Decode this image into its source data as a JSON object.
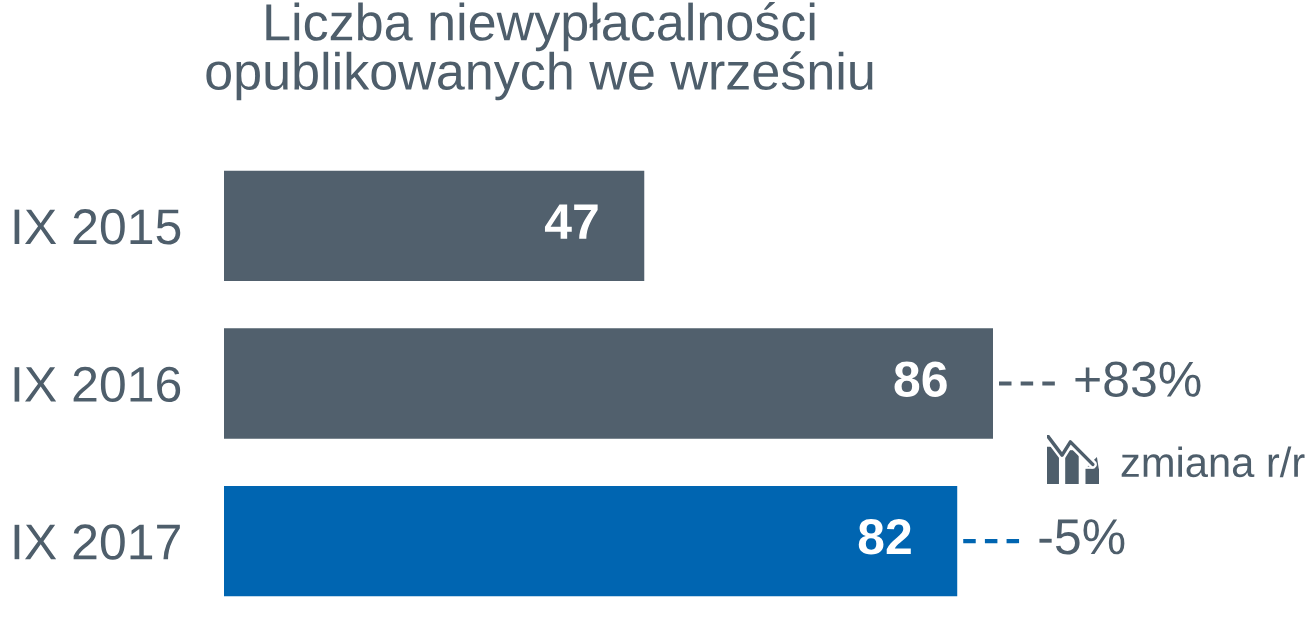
{
  "chart_data": {
    "type": "bar",
    "orientation": "horizontal",
    "title": "Liczba niewypłacalności\nopublikowanych we wrześniu",
    "categories": [
      "IX 2015",
      "IX 2016",
      "IX 2017"
    ],
    "values": [
      47,
      86,
      82
    ],
    "colors": [
      "#51606d",
      "#51606d",
      "#0065b1"
    ],
    "data_labels": true,
    "tick_labels": "y",
    "annotations": [
      {
        "text": "+83%",
        "x": 86,
        "y": "IX 2016"
      },
      {
        "text": "-5%",
        "x": 82,
        "y": "IX 2017"
      },
      "zmiana r/r"
    ]
  }
}
